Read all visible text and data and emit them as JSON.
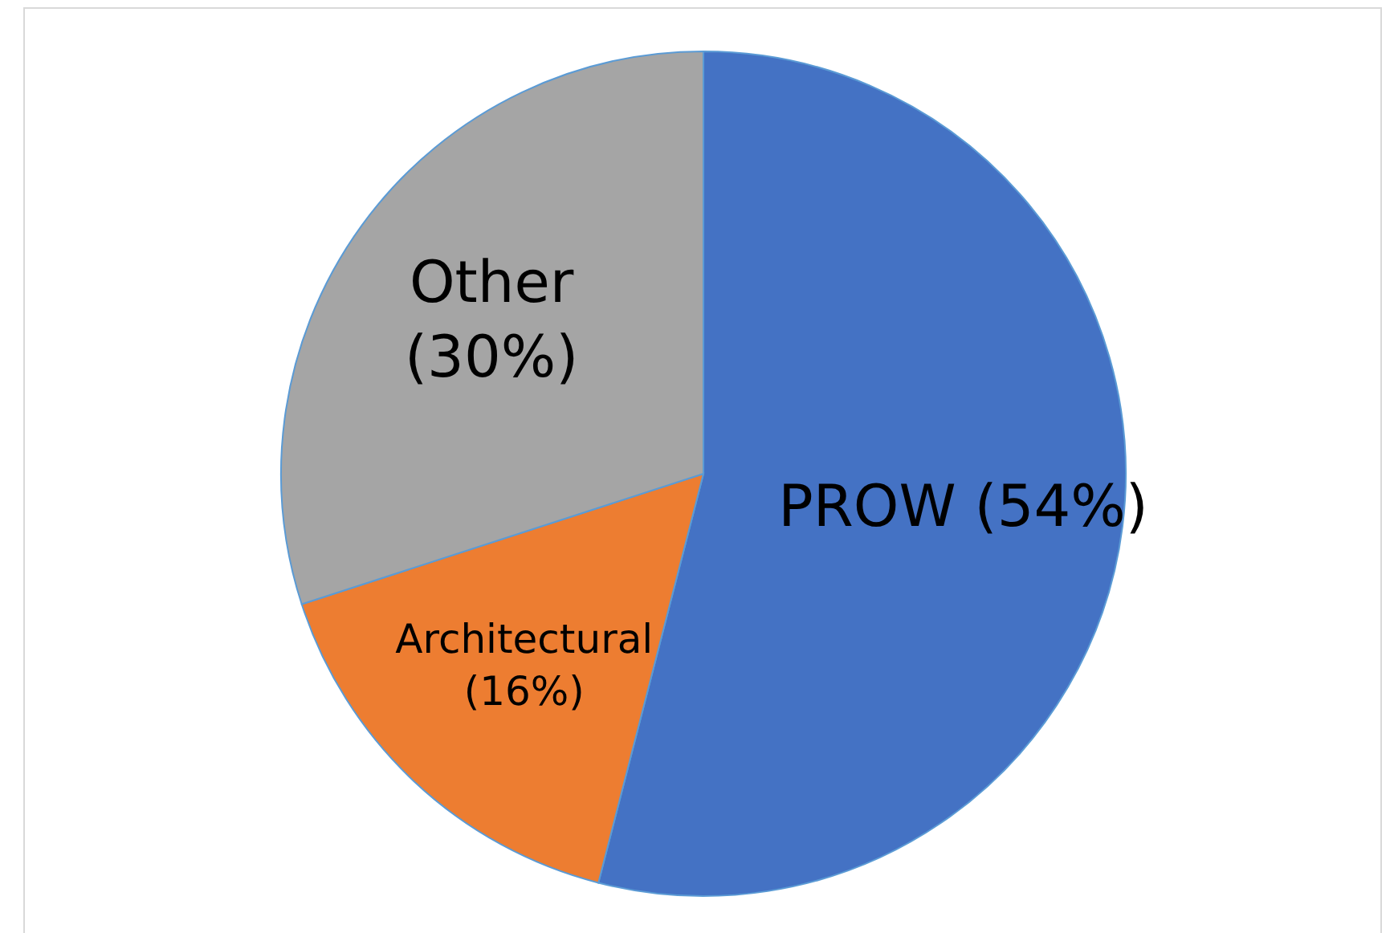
{
  "chart_data": {
    "type": "pie",
    "categories": [
      "PROW",
      "Architectural",
      "Other"
    ],
    "values": [
      54,
      16,
      30
    ],
    "colors": [
      "#4472c4",
      "#ed7d31",
      "#a5a5a5"
    ],
    "value_labels": [
      "(54%)",
      "(16%)",
      "(30%)"
    ]
  }
}
